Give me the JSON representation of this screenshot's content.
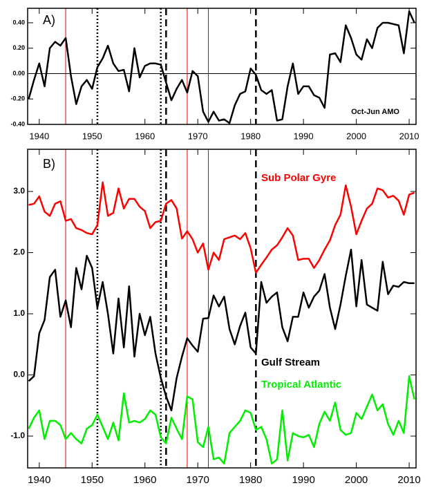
{
  "chart_data": [
    {
      "type": "line",
      "label": "A)",
      "annotation": "Oct-Jun AMO",
      "x": [
        1938,
        1939,
        1940,
        1941,
        1942,
        1943,
        1944,
        1945,
        1946,
        1947,
        1948,
        1949,
        1950,
        1951,
        1952,
        1953,
        1954,
        1955,
        1956,
        1957,
        1958,
        1959,
        1960,
        1961,
        1962,
        1963,
        1964,
        1965,
        1966,
        1967,
        1968,
        1969,
        1970,
        1971,
        1972,
        1973,
        1974,
        1975,
        1976,
        1977,
        1978,
        1979,
        1980,
        1981,
        1982,
        1983,
        1984,
        1985,
        1986,
        1987,
        1988,
        1989,
        1990,
        1991,
        1992,
        1993,
        1994,
        1995,
        1996,
        1997,
        1998,
        1999,
        2000,
        2001,
        2002,
        2003,
        2004,
        2005,
        2006,
        2007,
        2008,
        2009,
        2010,
        2011
      ],
      "series": [
        {
          "color": "#000000",
          "values": [
            -0.2,
            -0.05,
            0.08,
            -0.1,
            0.2,
            0.25,
            0.22,
            0.28,
            -0.02,
            -0.24,
            -0.1,
            -0.05,
            -0.12,
            0.05,
            0.12,
            0.22,
            0.08,
            0.02,
            0.03,
            -0.14,
            0.2,
            -0.03,
            0.06,
            0.08,
            0.08,
            0.07,
            -0.07,
            -0.21,
            -0.12,
            -0.05,
            -0.15,
            0.02,
            -0.02,
            -0.3,
            -0.38,
            -0.3,
            -0.37,
            -0.36,
            -0.39,
            -0.25,
            -0.16,
            -0.14,
            0.04,
            -0.01,
            -0.13,
            -0.16,
            -0.13,
            -0.37,
            -0.36,
            -0.1,
            0.08,
            -0.16,
            -0.1,
            -0.1,
            -0.17,
            -0.19,
            -0.27,
            0.15,
            0.16,
            0.09,
            0.38,
            0.28,
            0.15,
            0.11,
            0.27,
            0.2,
            0.36,
            0.4,
            0.4,
            0.39,
            0.38,
            0.16,
            0.49,
            0.4
          ]
        }
      ],
      "xlim": [
        1937.8,
        2011.3
      ],
      "xticks": [
        1940,
        1950,
        1960,
        1970,
        1980,
        1990,
        2000,
        2010
      ],
      "ylim": [
        -0.4,
        0.514
      ],
      "yticks": [
        {
          "value": -0.4,
          "label": "-0.40"
        },
        {
          "value": -0.2,
          "label": "-0.20"
        },
        {
          "value": 0,
          "label": "0.00"
        },
        {
          "value": 0.2,
          "label": "0.20"
        },
        {
          "value": 0.4,
          "label": "0.40"
        }
      ],
      "zero_line": true,
      "vlines": [
        {
          "x": 1945,
          "color": "#e00000",
          "style": "solid"
        },
        {
          "x": 1968,
          "color": "#e00000",
          "style": "solid"
        },
        {
          "x": 1972,
          "color": "#e00000",
          "style": "solid"
        },
        {
          "x": 1951,
          "color": "#000000",
          "style": "dotted"
        },
        {
          "x": 1963,
          "color": "#000000",
          "style": "dotted"
        },
        {
          "x": 1964,
          "color": "#000000",
          "style": "dashed"
        },
        {
          "x": 1981,
          "color": "#000000",
          "style": "dashed"
        }
      ]
    },
    {
      "type": "line",
      "label": "B)",
      "x": [
        1938,
        1939,
        1940,
        1941,
        1942,
        1943,
        1944,
        1945,
        1946,
        1947,
        1948,
        1949,
        1950,
        1951,
        1952,
        1953,
        1954,
        1955,
        1956,
        1957,
        1958,
        1959,
        1960,
        1961,
        1962,
        1963,
        1964,
        1965,
        1966,
        1967,
        1968,
        1969,
        1970,
        1971,
        1972,
        1973,
        1974,
        1975,
        1976,
        1977,
        1978,
        1979,
        1980,
        1981,
        1982,
        1983,
        1984,
        1985,
        1986,
        1987,
        1988,
        1989,
        1990,
        1991,
        1992,
        1993,
        1994,
        1995,
        1996,
        1997,
        1998,
        1999,
        2000,
        2001,
        2002,
        2003,
        2004,
        2005,
        2006,
        2007,
        2008,
        2009,
        2010,
        2011
      ],
      "series": [
        {
          "name": "Sub Polar Gyre",
          "color": "#ff0000",
          "values": [
            2.78,
            2.8,
            2.92,
            2.67,
            2.6,
            2.8,
            2.84,
            2.52,
            2.55,
            2.4,
            2.37,
            2.32,
            2.3,
            2.45,
            3.15,
            2.6,
            2.65,
            3.05,
            2.72,
            2.88,
            2.88,
            2.75,
            2.68,
            2.4,
            2.5,
            2.52,
            2.8,
            2.86,
            2.72,
            2.23,
            2.35,
            2.22,
            2.0,
            2.15,
            1.72,
            2.0,
            1.88,
            2.22,
            2.25,
            2.28,
            2.22,
            2.32,
            2.07,
            1.67,
            1.8,
            1.92,
            2.05,
            2.12,
            2.25,
            2.4,
            2.28,
            1.88,
            1.9,
            1.9,
            1.75,
            1.88,
            2.05,
            2.2,
            2.45,
            2.62,
            3.1,
            2.75,
            2.3,
            2.52,
            2.72,
            2.8,
            3.05,
            3.02,
            2.9,
            2.93,
            2.85,
            2.62,
            2.95,
            2.98
          ]
        },
        {
          "name": "Gulf Stream",
          "color": "#000000",
          "values": [
            -0.1,
            -0.02,
            0.68,
            0.9,
            1.6,
            1.72,
            0.95,
            1.22,
            0.78,
            1.75,
            1.4,
            1.95,
            1.75,
            1.1,
            1.52,
            1.0,
            0.35,
            1.25,
            0.45,
            1.45,
            0.3,
            1.0,
            0.65,
            0.95,
            0.35,
            -0.05,
            -0.35,
            -0.58,
            -0.05,
            0.3,
            0.6,
            0.48,
            0.38,
            0.92,
            0.93,
            1.3,
            1.12,
            1.28,
            0.75,
            0.5,
            0.8,
            1.02,
            0.45,
            0.35,
            1.52,
            1.18,
            1.28,
            1.35,
            0.78,
            0.55,
            0.95,
            0.95,
            1.35,
            1.1,
            1.28,
            1.38,
            1.65,
            1.1,
            0.75,
            1.15,
            1.62,
            2.05,
            1.12,
            1.88,
            1.15,
            1.1,
            1.05,
            1.85,
            1.32,
            1.46,
            1.44,
            1.52,
            1.5,
            1.5
          ]
        },
        {
          "name": "Tropical Atlantic",
          "color": "#00ee00",
          "values": [
            -0.88,
            -0.7,
            -0.58,
            -1.05,
            -0.75,
            -0.75,
            -0.82,
            -1.05,
            -0.95,
            -1.05,
            -1.12,
            -0.88,
            -0.82,
            -0.65,
            -0.85,
            -1.05,
            -0.78,
            -1.07,
            -0.3,
            -0.78,
            -0.75,
            -0.78,
            -0.72,
            -0.58,
            -0.65,
            -1.02,
            -1.12,
            -0.7,
            -0.88,
            -1.05,
            -0.35,
            -0.4,
            -1.1,
            -1.18,
            -0.85,
            -1.38,
            -1.35,
            -1.45,
            -0.95,
            -0.85,
            -0.75,
            -0.58,
            -0.62,
            -0.9,
            -0.85,
            -1.05,
            -1.45,
            -1.38,
            -0.58,
            -1.4,
            -0.95,
            -1.0,
            -1.02,
            -0.98,
            -1.18,
            -0.8,
            -0.6,
            -0.75,
            -0.45,
            -0.9,
            -0.98,
            -0.95,
            -0.62,
            -0.72,
            -0.52,
            -0.32,
            -0.58,
            -0.48,
            -0.8,
            -0.98,
            -0.75,
            -0.95,
            -0.02,
            -0.4
          ]
        }
      ],
      "xlim": [
        1937.8,
        2011.3
      ],
      "xticks": [
        1940,
        1950,
        1960,
        1970,
        1980,
        1990,
        2000,
        2010
      ],
      "ylim": [
        -1.52,
        3.69
      ],
      "yticks": [
        {
          "value": -1,
          "label": "-1.0"
        },
        {
          "value": 0,
          "label": "0.0"
        },
        {
          "value": 1,
          "label": "1.0"
        },
        {
          "value": 2,
          "label": "2.0"
        },
        {
          "value": 3,
          "label": "3.0"
        }
      ],
      "zero_line": false,
      "vlines": [
        {
          "x": 1945,
          "color": "#e00000",
          "style": "solid"
        },
        {
          "x": 1968,
          "color": "#e00000",
          "style": "solid"
        },
        {
          "x": 1972,
          "color": "#e00000",
          "style": "solid"
        },
        {
          "x": 1951,
          "color": "#000000",
          "style": "dotted"
        },
        {
          "x": 1963,
          "color": "#000000",
          "style": "dotted"
        },
        {
          "x": 1964,
          "color": "#000000",
          "style": "dashed"
        },
        {
          "x": 1981,
          "color": "#000000",
          "style": "dashed"
        }
      ]
    }
  ]
}
